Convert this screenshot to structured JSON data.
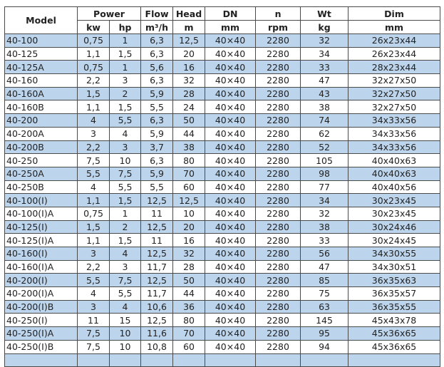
{
  "headers": {
    "model": "Model",
    "power": "Power",
    "flow": "Flow",
    "head": "Head",
    "dn": "DN",
    "n": "n",
    "wt": "Wt",
    "dim": "Dim",
    "units": [
      "kw",
      "hp",
      "m³/h",
      "m",
      "mm",
      "rpm",
      "kg",
      "mm"
    ]
  },
  "rows": [
    [
      "40-100",
      "0,75",
      "1",
      "6,3",
      "12,5",
      "40×40",
      "2280",
      "32",
      "26x23x44"
    ],
    [
      "40-125",
      "1,1",
      "1,5",
      "6,3",
      "20",
      "40×40",
      "2280",
      "34",
      "26x23x44"
    ],
    [
      "40-125A",
      "0,75",
      "1",
      "5,6",
      "16",
      "40×40",
      "2280",
      "33",
      "28x23x44"
    ],
    [
      "40-160",
      "2,2",
      "3",
      "6,3",
      "32",
      "40×40",
      "2280",
      "47",
      "32x27x50"
    ],
    [
      "40-160A",
      "1,5",
      "2",
      "5,9",
      "28",
      "40×40",
      "2280",
      "43",
      "32x27x50"
    ],
    [
      "40-160B",
      "1,1",
      "1,5",
      "5,5",
      "24",
      "40×40",
      "2280",
      "38",
      "32x27x50"
    ],
    [
      "40-200",
      "4",
      "5,5",
      "6,3",
      "50",
      "40×40",
      "2280",
      "74",
      "34x33x56"
    ],
    [
      "40-200A",
      "3",
      "4",
      "5,9",
      "44",
      "40×40",
      "2280",
      "62",
      "34x33x56"
    ],
    [
      "40-200B",
      "2,2",
      "3",
      "3,7",
      "38",
      "40×40",
      "2280",
      "52",
      "34x33x56"
    ],
    [
      "40-250",
      "7,5",
      "10",
      "6,3",
      "80",
      "40×40",
      "2280",
      "105",
      "40x40x63"
    ],
    [
      "40-250A",
      "5,5",
      "7,5",
      "5,9",
      "70",
      "40×40",
      "2280",
      "98",
      "40x40x63"
    ],
    [
      "40-250B",
      "4",
      "5,5",
      "5,5",
      "60",
      "40×40",
      "2280",
      "77",
      "40x40x56"
    ],
    [
      "40-100(I)",
      "1,1",
      "1,5",
      "12,5",
      "12,5",
      "40×40",
      "2280",
      "34",
      "30x23x45"
    ],
    [
      "40-100(I)A",
      "0,75",
      "1",
      "11",
      "10",
      "40×40",
      "2280",
      "32",
      "30x23x45"
    ],
    [
      "40-125(I)",
      "1,5",
      "2",
      "12,5",
      "20",
      "40×40",
      "2280",
      "38",
      "30x24x46"
    ],
    [
      "40-125(I)A",
      "1,1",
      "1,5",
      "11",
      "16",
      "40×40",
      "2280",
      "33",
      "30x24x45"
    ],
    [
      "40-160(I)",
      "3",
      "4",
      "12,5",
      "32",
      "40×40",
      "2280",
      "56",
      "34x30x55"
    ],
    [
      "40-160(I)A",
      "2,2",
      "3",
      "11,7",
      "28",
      "40×40",
      "2280",
      "47",
      "34x30x51"
    ],
    [
      "40-200(I)",
      "5,5",
      "7,5",
      "12,5",
      "50",
      "40×40",
      "2280",
      "85",
      "36x35x63"
    ],
    [
      "40-200(I)A",
      "4",
      "5,5",
      "11,7",
      "44",
      "40×40",
      "2280",
      "75",
      "36x35x57"
    ],
    [
      "40-200(I)B",
      "3",
      "4",
      "10,6",
      "36",
      "40×40",
      "2280",
      "63",
      "36x35x55"
    ],
    [
      "40-250(I)",
      "11",
      "15",
      "12,5",
      "80",
      "40×40",
      "2280",
      "145",
      "45x43x78"
    ],
    [
      "40-250(I)A",
      "7,5",
      "10",
      "11,6",
      "70",
      "40×40",
      "2280",
      "95",
      "45x36x65"
    ],
    [
      "40-250(I)B",
      "7,5",
      "10",
      "10,8",
      "60",
      "40×40",
      "2280",
      "94",
      "45x36x65"
    ]
  ],
  "colors": {
    "row_alt": "#bdd5ec",
    "border": "#4a4a4a"
  }
}
